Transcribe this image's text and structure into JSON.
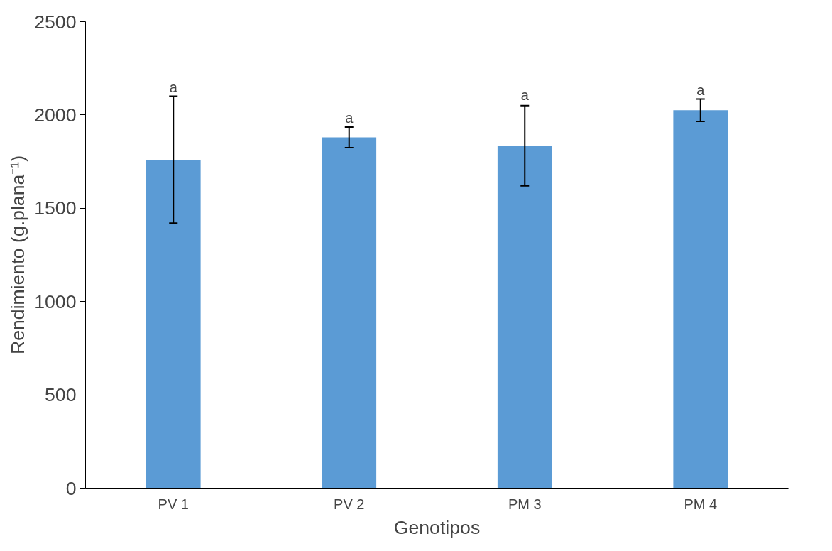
{
  "chart_data": {
    "type": "bar",
    "xlabel": "Genotipos",
    "ylabel": "Rendimiento (g.plana⁻¹)",
    "categories": [
      "PV 1",
      "PV 2",
      "PM 3",
      "PM 4"
    ],
    "values": [
      1760,
      1880,
      1835,
      2025
    ],
    "errors": [
      340,
      55,
      215,
      60
    ],
    "color": "#5b9bd5",
    "ylim": [
      0,
      2500
    ],
    "yticks": [
      0,
      500,
      1000,
      1500,
      2000,
      2500
    ],
    "grid": false,
    "annotations": [
      {
        "text": "a",
        "x": "PV 1",
        "y": 2100
      },
      {
        "text": "a",
        "x": "PV 2",
        "y": 1935
      },
      {
        "text": "a",
        "x": "PM 3",
        "y": 2055
      },
      {
        "text": "a",
        "x": "PM 4",
        "y": 2085
      }
    ]
  }
}
